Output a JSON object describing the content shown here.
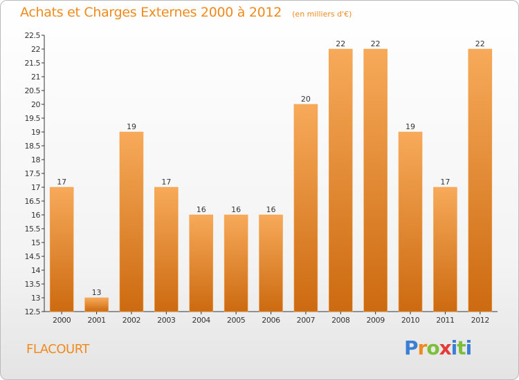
{
  "title": "Achats et Charges Externes 2000 à 2012",
  "subtitle": "(en milliers d'€)",
  "commune": "FLACOURT",
  "brand": {
    "letters": [
      "P",
      "r",
      "o",
      "x",
      "i",
      "t",
      "i"
    ],
    "colors": [
      "#3a7fd5",
      "#f08a1c",
      "#7bbf3a",
      "#e33b3b",
      "#3a7fd5",
      "#7bbf3a",
      "#3a7fd5"
    ]
  },
  "chart_data": {
    "type": "bar",
    "title": "Achats et Charges Externes 2000 à 2012",
    "subtitle": "(en milliers d'€)",
    "categories": [
      "2000",
      "2001",
      "2002",
      "2003",
      "2004",
      "2005",
      "2006",
      "2007",
      "2008",
      "2009",
      "2010",
      "2011",
      "2012"
    ],
    "values": [
      17,
      13,
      19,
      17,
      16,
      16,
      16,
      20,
      22,
      22,
      19,
      17,
      22
    ],
    "data_labels": [
      "17",
      "13",
      "19",
      "17",
      "16",
      "16",
      "16",
      "20",
      "22",
      "22",
      "19",
      "17",
      "22"
    ],
    "ylim": [
      12.5,
      22.5
    ],
    "yticks": [
      "12.5",
      "13",
      "13.5",
      "14",
      "14.5",
      "15",
      "15.5",
      "16",
      "16.5",
      "17",
      "17.5",
      "18",
      "18.5",
      "19",
      "19.5",
      "20",
      "20.5",
      "21",
      "21.5",
      "22",
      "22.5"
    ],
    "grid": false,
    "bar_color": "#f08a1c"
  }
}
